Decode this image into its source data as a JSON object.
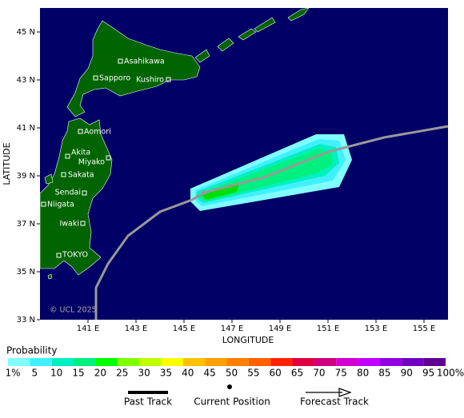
{
  "map": {
    "y_axis_title": "LATITUDE",
    "x_axis_title": "LONGITUDE",
    "lat_labels": [
      "45 N",
      "43 N",
      "41 N",
      "39 N",
      "37 N",
      "35 N",
      "33 N"
    ],
    "lon_labels": [
      "141 E",
      "143 E",
      "145 E",
      "147 E",
      "149 E",
      "151 E",
      "153 E",
      "155 E"
    ],
    "cities": [
      "Asahikawa",
      "Sapporo",
      "Kushiro",
      "Aomori",
      "Akita",
      "Miyako",
      "Sakata",
      "Sendai",
      "Niigata",
      "Iwaki",
      "TOKYO"
    ],
    "copyright": "© UCL 2025"
  },
  "legend": {
    "title": "Probability",
    "labels": [
      "1%",
      "5",
      "10",
      "15",
      "20",
      "25",
      "30",
      "35",
      "40",
      "45",
      "50",
      "55",
      "60",
      "65",
      "70",
      "75",
      "80",
      "85",
      "90",
      "95",
      "100%"
    ],
    "colors": [
      "#80ffff",
      "#40f0ff",
      "#00f0c0",
      "#00f080",
      "#00ff00",
      "#80ff00",
      "#c0ff00",
      "#ffff00",
      "#ffc000",
      "#ffa000",
      "#ff8000",
      "#ff6000",
      "#ff2000",
      "#e00040",
      "#d00080",
      "#d000d0",
      "#c000ff",
      "#9000e0",
      "#7000c0",
      "#600090"
    ],
    "past_track": "Past Track",
    "current_position": "Current Position",
    "forecast_track": "Forecast Track"
  }
}
